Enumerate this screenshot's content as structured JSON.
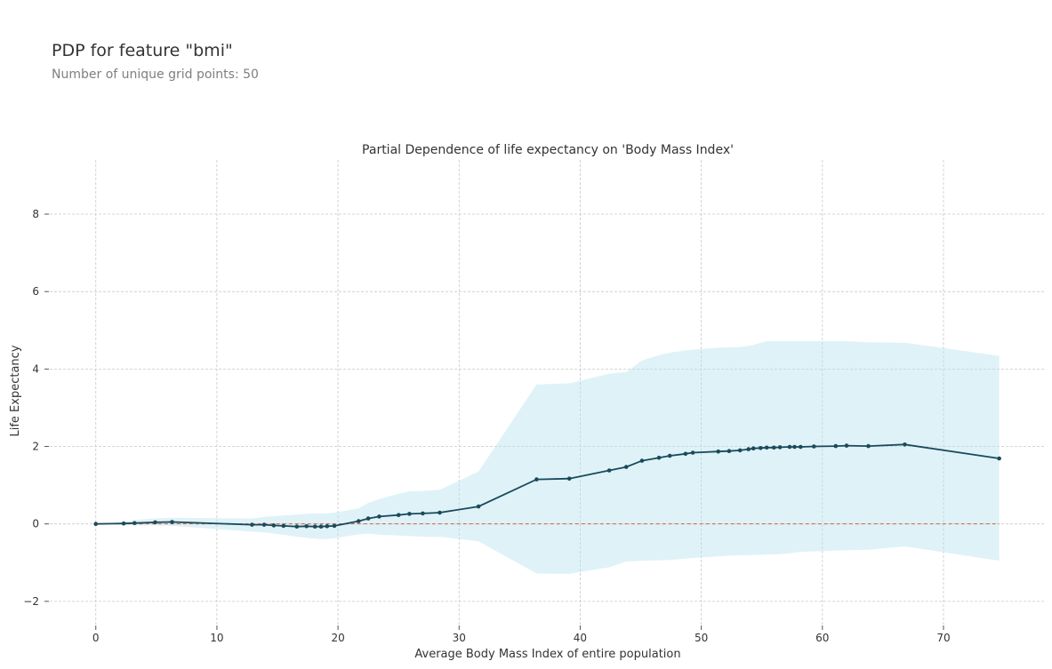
{
  "header": {
    "title": "PDP for feature \"bmi\"",
    "subtitle": "Number of unique grid points: 50"
  },
  "colors": {
    "line": "#1a4a5c",
    "band": "#b7e3ed",
    "baseline": "#e15b3d",
    "grid": "#c8c8c8",
    "text": "#333333"
  },
  "chart_data": {
    "type": "line",
    "title": "Partial Dependence of life expectancy on 'Body Mass Index'",
    "xlabel": "Average Body Mass Index of entire population",
    "ylabel": "Life Expectancy",
    "xlim": [
      -3.8,
      78.3
    ],
    "ylim": [
      -2.6,
      9.4
    ],
    "xticks": [
      0,
      10,
      20,
      30,
      40,
      50,
      60,
      70
    ],
    "yticks": [
      -2,
      0,
      2,
      4,
      6,
      8
    ],
    "grid": true,
    "baseline": 0,
    "series": [
      {
        "x": [
          0,
          2.3,
          3.2,
          4.9,
          6.3,
          12.9,
          13.9,
          14.7,
          15.5,
          16.6,
          17.4,
          18.1,
          18.6,
          19.1,
          19.7,
          21.7,
          22.5,
          23.4,
          25.0,
          25.9,
          27.0,
          28.4,
          31.6,
          36.4,
          39.1,
          42.4,
          43.8,
          45.1,
          46.5,
          47.4,
          48.7,
          49.3,
          51.4,
          52.3,
          53.2,
          53.9,
          54.3,
          54.9,
          55.4,
          56.0,
          56.5,
          57.3,
          57.7,
          58.2,
          59.3,
          61.1,
          62.0,
          63.8,
          66.8,
          74.6
        ],
        "y": [
          0,
          0.01,
          0.02,
          0.04,
          0.05,
          -0.02,
          -0.02,
          -0.04,
          -0.05,
          -0.07,
          -0.06,
          -0.07,
          -0.07,
          -0.06,
          -0.05,
          0.07,
          0.14,
          0.19,
          0.23,
          0.26,
          0.27,
          0.29,
          0.45,
          1.15,
          1.17,
          1.38,
          1.47,
          1.63,
          1.71,
          1.76,
          1.81,
          1.84,
          1.87,
          1.88,
          1.9,
          1.93,
          1.95,
          1.96,
          1.97,
          1.97,
          1.98,
          1.99,
          1.99,
          1.99,
          2.0,
          2.01,
          2.02,
          2.01,
          2.05,
          1.69
        ],
        "upper": [
          0,
          0.04,
          0.1,
          0.14,
          0.16,
          0.14,
          0.18,
          0.2,
          0.22,
          0.24,
          0.26,
          0.27,
          0.27,
          0.27,
          0.29,
          0.4,
          0.54,
          0.64,
          0.78,
          0.84,
          0.85,
          0.88,
          1.35,
          3.6,
          3.63,
          3.88,
          3.92,
          4.22,
          4.36,
          4.42,
          4.48,
          4.5,
          4.55,
          4.56,
          4.57,
          4.6,
          4.62,
          4.68,
          4.72,
          4.72,
          4.72,
          4.72,
          4.72,
          4.72,
          4.72,
          4.72,
          4.72,
          4.69,
          4.68,
          4.34
        ],
        "lower": [
          0,
          -0.03,
          -0.04,
          -0.04,
          -0.05,
          -0.2,
          -0.22,
          -0.25,
          -0.28,
          -0.33,
          -0.36,
          -0.38,
          -0.39,
          -0.39,
          -0.37,
          -0.27,
          -0.25,
          -0.28,
          -0.3,
          -0.31,
          -0.33,
          -0.33,
          -0.45,
          -1.28,
          -1.29,
          -1.12,
          -0.97,
          -0.95,
          -0.94,
          -0.93,
          -0.9,
          -0.88,
          -0.84,
          -0.82,
          -0.81,
          -0.81,
          -0.8,
          -0.8,
          -0.79,
          -0.79,
          -0.78,
          -0.76,
          -0.74,
          -0.72,
          -0.71,
          -0.69,
          -0.68,
          -0.67,
          -0.58,
          -0.95
        ]
      }
    ]
  }
}
